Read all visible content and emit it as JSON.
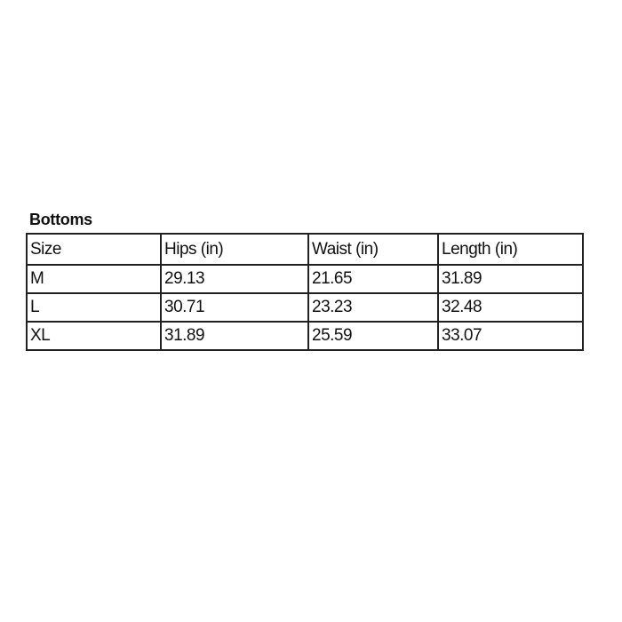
{
  "title": "Bottoms",
  "headers": [
    "Size",
    "Hips (in)",
    "Waist (in)",
    "Length (in)"
  ],
  "rows": [
    [
      "M",
      "29.13",
      "21.65",
      "31.89"
    ],
    [
      "L",
      "30.71",
      "23.23",
      "32.48"
    ],
    [
      "XL",
      "31.89",
      "25.59",
      "33.07"
    ]
  ]
}
